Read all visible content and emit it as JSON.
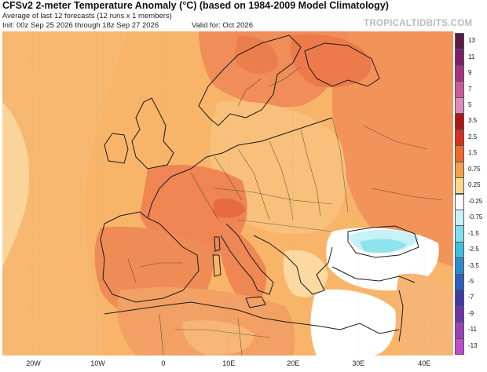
{
  "header": {
    "title": "CFSv2 2-meter Temperature Anomaly (°C) (based on 1984-2009 Model Climatology)",
    "subtitle": "Average of last 12 forecasts (12 runs x 1 members)",
    "init": "Init: 00z Sep 25 2026 through 18z Sep 27 2026",
    "valid": "Valid for: Oct 2026",
    "brand": "TROPICALTIDBITS.COM"
  },
  "colorbar": {
    "labels": [
      "13",
      "11",
      "9",
      "7",
      "5",
      "3.5",
      "2.5",
      "1.5",
      "0.75",
      "0.25",
      "-0.25",
      "-0.75",
      "-1.5",
      "-2.5",
      "-3.5",
      "-5",
      "-7",
      "-9",
      "-11",
      "-13"
    ],
    "colors": [
      "#5a1a4a",
      "#7a1f6a",
      "#a8327f",
      "#c85a9a",
      "#e08ab8",
      "#b01515",
      "#d8301f",
      "#ee6a2f",
      "#f5a04a",
      "#fbd78a",
      "#ffffff",
      "#c6f2f7",
      "#7fe0ee",
      "#3cc0dc",
      "#2a8bd0",
      "#2d5fc0",
      "#3d3ba8",
      "#6a35a8",
      "#9a40b8",
      "#c04ad0"
    ]
  },
  "xaxis": {
    "labels": [
      "20W",
      "10W",
      "0",
      "10E",
      "20E",
      "30E",
      "40E"
    ]
  }
}
